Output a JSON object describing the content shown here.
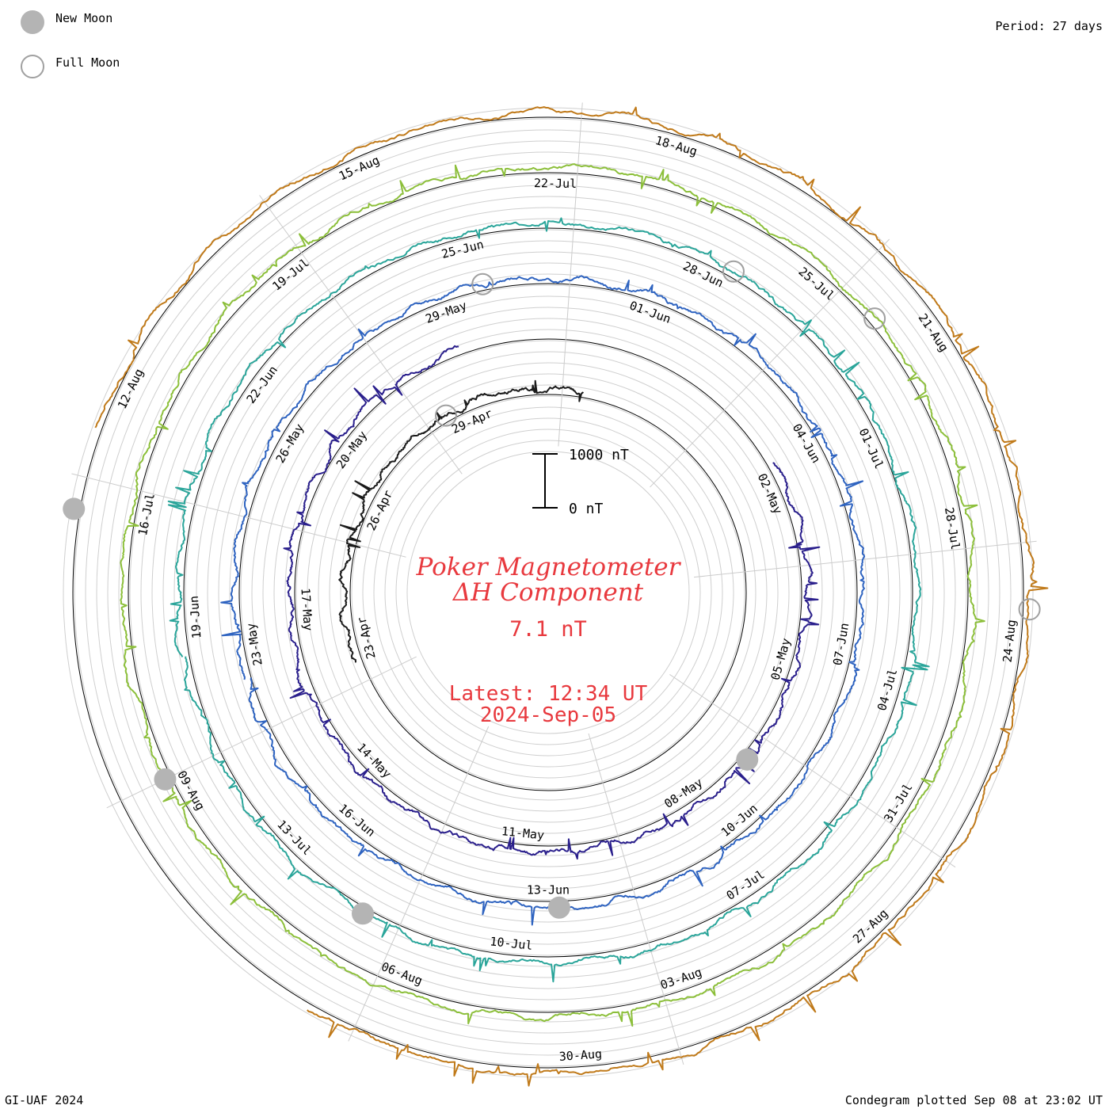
{
  "legend": {
    "new_moon_label": "New Moon",
    "full_moon_label": "Full Moon",
    "new_moon_color": "#b4b4b4",
    "full_moon_color": "#a0a0a0"
  },
  "period_label": "Period: 27 days",
  "credit": "GI-UAF 2024",
  "plotted": "Condegram plotted Sep 08 at 23:02 UT",
  "chart_data": {
    "type": "line",
    "title": "Poker Magnetometer",
    "subtitle": "ΔH Component",
    "current_value": "7.1 nT",
    "latest_time": "Latest: 12:34 UT",
    "latest_date": "2024-Sep-05",
    "scale_labels": [
      "1000 nT",
      "0 nT"
    ],
    "rings": [
      {
        "color": "#1a1a1a",
        "ticks": [
          "23-Apr",
          "26-Apr",
          "29-Apr"
        ]
      },
      {
        "color": "#2a1f8c",
        "ticks": [
          "02-May",
          "05-May",
          "08-May",
          "11-May",
          "14-May",
          "17-May",
          "20-May"
        ]
      },
      {
        "color": "#2e63c0",
        "ticks": [
          "23-May",
          "26-May",
          "29-May",
          "01-Jun",
          "04-Jun",
          "07-Jun",
          "10-Jun",
          "13-Jun",
          "16-Jun"
        ]
      },
      {
        "color": "#2aa59a",
        "ticks": [
          "19-Jun",
          "22-Jun",
          "25-Jun",
          "28-Jun",
          "01-Jul",
          "04-Jul",
          "07-Jul",
          "10-Jul",
          "13-Jul"
        ]
      },
      {
        "color": "#8cbf3a",
        "ticks": [
          "16-Jul",
          "19-Jul",
          "22-Jul",
          "25-Jul",
          "28-Jul",
          "31-Jul",
          "03-Aug",
          "06-Aug",
          "09-Aug"
        ]
      },
      {
        "color": "#c07a1a",
        "ticks": [
          "12-Aug",
          "15-Aug",
          "18-Aug",
          "21-Aug",
          "24-Aug",
          "27-Aug",
          "30-Aug"
        ]
      }
    ]
  }
}
